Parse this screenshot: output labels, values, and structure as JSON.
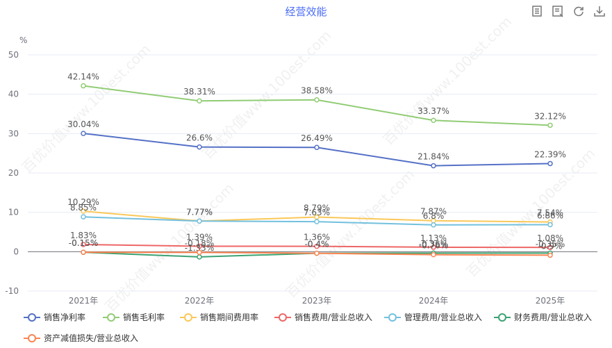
{
  "chart_data": {
    "type": "line",
    "title": "经营效能",
    "ylabel": "%",
    "ylim": [
      -10,
      50
    ],
    "yticks": [
      -10,
      0,
      10,
      20,
      30,
      40,
      50
    ],
    "categories": [
      "2021年",
      "2022年",
      "2023年",
      "2024年",
      "2025年"
    ],
    "grid": true,
    "legend_position": "bottom",
    "series": [
      {
        "name": "销售净利率",
        "color": "#5470c6",
        "values": [
          30.04,
          26.6,
          26.49,
          21.84,
          22.39
        ],
        "labels": [
          "30.04%",
          "26.6%",
          "26.49%",
          "21.84%",
          "22.39%"
        ]
      },
      {
        "name": "销售毛利率",
        "color": "#91cc75",
        "values": [
          42.14,
          38.31,
          38.58,
          33.37,
          32.12
        ],
        "labels": [
          "42.14%",
          "38.31%",
          "38.58%",
          "33.37%",
          "32.12%"
        ]
      },
      {
        "name": "销售期间费用率",
        "color": "#fac858",
        "values": [
          10.29,
          7.77,
          8.79,
          7.87,
          7.54
        ],
        "labels": [
          "10.29%",
          "7.77%",
          "8.79%",
          "7.87%",
          "7.54%"
        ]
      },
      {
        "name": "销售费用/营业总收入",
        "color": "#ee6666",
        "values": [
          1.83,
          1.39,
          1.36,
          1.13,
          1.08
        ],
        "labels": [
          "1.83%",
          "1.39%",
          "1.36%",
          "1.13%",
          "1.08%"
        ]
      },
      {
        "name": "管理费用/营业总收入",
        "color": "#73c0de",
        "values": [
          8.85,
          7.77,
          7.63,
          6.8,
          6.86
        ],
        "labels": [
          "8.85%",
          "7.77%",
          "7.63%",
          "6.8%",
          "6.86%"
        ]
      },
      {
        "name": "财务费用/营业总收入",
        "color": "#3ba272",
        "values": [
          -0.15,
          -1.33,
          -0.4,
          -0.36,
          -0.35
        ],
        "labels": [
          "-0.15%",
          "-1.33%",
          "-0.4%",
          "-0.36%",
          "-0.35%"
        ]
      },
      {
        "name": "资产减值损失/营业总收入",
        "color": "#fc8452",
        "values": [
          -0.15,
          -0.18,
          -0.4,
          -0.76,
          -0.9
        ],
        "labels": [
          "-0.15%",
          "-0.18%",
          "-0.4%",
          "-0.76%",
          "-0.9%"
        ]
      }
    ]
  },
  "watermark": "百优价值www.100est.com",
  "toolbar": {
    "icons": [
      "data-view-icon",
      "table-icon",
      "refresh-icon",
      "download-icon"
    ]
  }
}
